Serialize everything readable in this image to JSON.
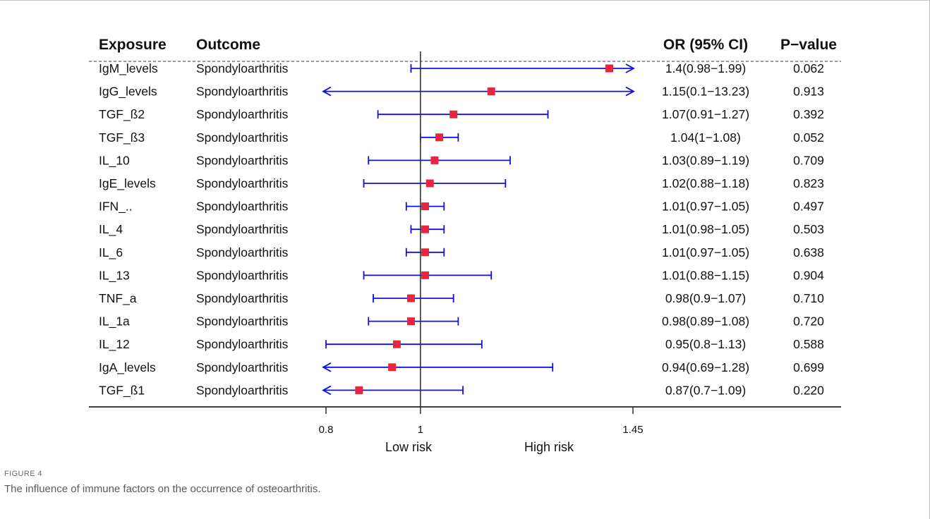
{
  "figure": {
    "label": "FIGURE 4",
    "caption": "The influence of immune factors on the occurrence of osteoarthritis."
  },
  "columns": {
    "exposure": "Exposure",
    "outcome": "Outcome",
    "or_ci": "OR (95% CI)",
    "pvalue": "P−value"
  },
  "risk_labels": {
    "low": "Low risk",
    "high": "High risk"
  },
  "colors": {
    "ci_line": "#1010dd",
    "point": "#e8253f",
    "text": "#111111",
    "ref_line": "#333333"
  },
  "chart_data": {
    "type": "forest",
    "x_ticks": [
      {
        "value": 0.8,
        "label": "0.8"
      },
      {
        "value": 1,
        "label": "1"
      },
      {
        "value": 1.45,
        "label": "1.45"
      }
    ],
    "reference_value": 1,
    "rows": [
      {
        "exposure": "IgM_levels",
        "outcome": "Spondyloarthritis",
        "or": 1.4,
        "lo": 0.98,
        "hi": 1.99,
        "arrow_left": false,
        "arrow_right": true,
        "or_ci": "1.4(0.98−1.99)",
        "p": "0.062"
      },
      {
        "exposure": "IgG_levels",
        "outcome": "Spondyloarthritis",
        "or": 1.15,
        "lo": 0.1,
        "hi": 13.23,
        "arrow_left": true,
        "arrow_right": true,
        "or_ci": "1.15(0.1−13.23)",
        "p": "0.913"
      },
      {
        "exposure": "TGF_ß2",
        "outcome": "Spondyloarthritis",
        "or": 1.07,
        "lo": 0.91,
        "hi": 1.27,
        "arrow_left": false,
        "arrow_right": false,
        "or_ci": "1.07(0.91−1.27)",
        "p": "0.392"
      },
      {
        "exposure": "TGF_ß3",
        "outcome": "Spondyloarthritis",
        "or": 1.04,
        "lo": 1,
        "hi": 1.08,
        "arrow_left": false,
        "arrow_right": false,
        "or_ci": "1.04(1−1.08)",
        "p": "0.052"
      },
      {
        "exposure": "IL_10",
        "outcome": "Spondyloarthritis",
        "or": 1.03,
        "lo": 0.89,
        "hi": 1.19,
        "arrow_left": false,
        "arrow_right": false,
        "or_ci": "1.03(0.89−1.19)",
        "p": "0.709"
      },
      {
        "exposure": "IgE_levels",
        "outcome": "Spondyloarthritis",
        "or": 1.02,
        "lo": 0.88,
        "hi": 1.18,
        "arrow_left": false,
        "arrow_right": false,
        "or_ci": "1.02(0.88−1.18)",
        "p": "0.823"
      },
      {
        "exposure": "IFN_..",
        "outcome": "Spondyloarthritis",
        "or": 1.01,
        "lo": 0.97,
        "hi": 1.05,
        "arrow_left": false,
        "arrow_right": false,
        "or_ci": "1.01(0.97−1.05)",
        "p": "0.497"
      },
      {
        "exposure": "IL_4",
        "outcome": "Spondyloarthritis",
        "or": 1.01,
        "lo": 0.98,
        "hi": 1.05,
        "arrow_left": false,
        "arrow_right": false,
        "or_ci": "1.01(0.98−1.05)",
        "p": "0.503"
      },
      {
        "exposure": "IL_6",
        "outcome": "Spondyloarthritis",
        "or": 1.01,
        "lo": 0.97,
        "hi": 1.05,
        "arrow_left": false,
        "arrow_right": false,
        "or_ci": "1.01(0.97−1.05)",
        "p": "0.638"
      },
      {
        "exposure": "IL_13",
        "outcome": "Spondyloarthritis",
        "or": 1.01,
        "lo": 0.88,
        "hi": 1.15,
        "arrow_left": false,
        "arrow_right": false,
        "or_ci": "1.01(0.88−1.15)",
        "p": "0.904"
      },
      {
        "exposure": "TNF_a",
        "outcome": "Spondyloarthritis",
        "or": 0.98,
        "lo": 0.9,
        "hi": 1.07,
        "arrow_left": false,
        "arrow_right": false,
        "or_ci": "0.98(0.9−1.07)",
        "p": "0.710"
      },
      {
        "exposure": "IL_1a",
        "outcome": "Spondyloarthritis",
        "or": 0.98,
        "lo": 0.89,
        "hi": 1.08,
        "arrow_left": false,
        "arrow_right": false,
        "or_ci": "0.98(0.89−1.08)",
        "p": "0.720"
      },
      {
        "exposure": "IL_12",
        "outcome": "Spondyloarthritis",
        "or": 0.95,
        "lo": 0.8,
        "hi": 1.13,
        "arrow_left": false,
        "arrow_right": false,
        "or_ci": "0.95(0.8−1.13)",
        "p": "0.588"
      },
      {
        "exposure": "IgA_levels",
        "outcome": "Spondyloarthritis",
        "or": 0.94,
        "lo": 0.69,
        "hi": 1.28,
        "arrow_left": true,
        "arrow_right": false,
        "or_ci": "0.94(0.69−1.28)",
        "p": "0.699"
      },
      {
        "exposure": "TGF_ß1",
        "outcome": "Spondyloarthritis",
        "or": 0.87,
        "lo": 0.7,
        "hi": 1.09,
        "arrow_left": true,
        "arrow_right": false,
        "or_ci": "0.87(0.7−1.09)",
        "p": "0.220"
      }
    ]
  }
}
